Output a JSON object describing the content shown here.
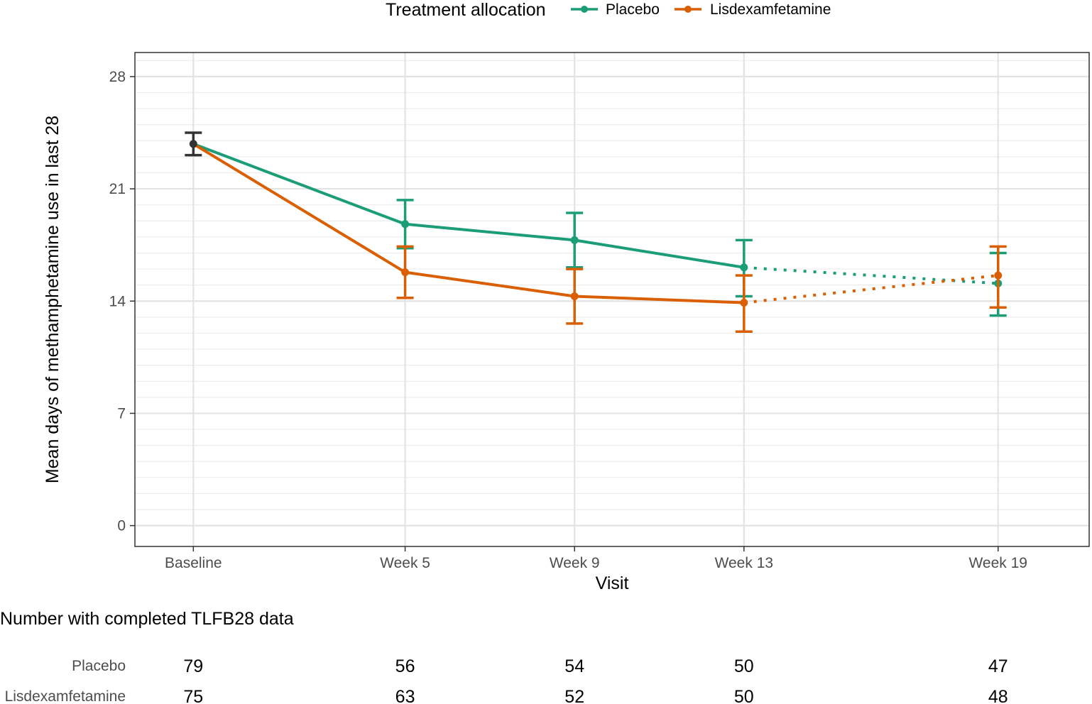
{
  "chart_data": {
    "type": "line",
    "xlabel": "Visit",
    "ylabel": "Mean days of methamphetamine use in last 28",
    "ylim": [
      -1.3,
      29.5
    ],
    "yticks": [
      0,
      7,
      14,
      21,
      28
    ],
    "categories": [
      "Baseline",
      "Week 5",
      "Week 9",
      "Week 13",
      "Week 19"
    ],
    "category_positions": [
      0,
      5,
      9,
      13,
      19
    ],
    "legend_title": "Treatment allocation",
    "legend_position": "top",
    "colors": {
      "placebo": "#1b9e77",
      "lisdexamfetamine": "#d95f02",
      "baseline": "#333333"
    },
    "baseline": {
      "name": "Baseline (pooled)",
      "mean": 23.8,
      "lower": 23.1,
      "upper": 24.5
    },
    "series": [
      {
        "name": "Placebo",
        "key": "placebo",
        "points": [
          {
            "visit": "Baseline",
            "mean": 23.8,
            "lower": 23.1,
            "upper": 24.5
          },
          {
            "visit": "Week 5",
            "mean": 18.8,
            "lower": 17.3,
            "upper": 20.3
          },
          {
            "visit": "Week 9",
            "mean": 17.8,
            "lower": 16.1,
            "upper": 19.5
          },
          {
            "visit": "Week 13",
            "mean": 16.1,
            "lower": 14.3,
            "upper": 17.8
          },
          {
            "visit": "Week 19",
            "mean": 15.1,
            "lower": 13.1,
            "upper": 17.0
          }
        ],
        "dotted_from_index": 3
      },
      {
        "name": "Lisdexamfetamine",
        "key": "lisdexamfetamine",
        "points": [
          {
            "visit": "Baseline",
            "mean": 23.8,
            "lower": 23.1,
            "upper": 24.5
          },
          {
            "visit": "Week 5",
            "mean": 15.8,
            "lower": 14.2,
            "upper": 17.4
          },
          {
            "visit": "Week 9",
            "mean": 14.3,
            "lower": 12.6,
            "upper": 16.0
          },
          {
            "visit": "Week 13",
            "mean": 13.9,
            "lower": 12.1,
            "upper": 15.6
          },
          {
            "visit": "Week 19",
            "mean": 15.6,
            "lower": 13.6,
            "upper": 17.4
          }
        ],
        "dotted_from_index": 3
      }
    ]
  },
  "table": {
    "title": "Number with completed TLFB28 data",
    "rows": [
      {
        "label": "Placebo",
        "values": [
          "79",
          "56",
          "54",
          "50",
          "47"
        ]
      },
      {
        "label": "Lisdexamfetamine",
        "values": [
          "75",
          "63",
          "52",
          "50",
          "48"
        ]
      }
    ]
  }
}
